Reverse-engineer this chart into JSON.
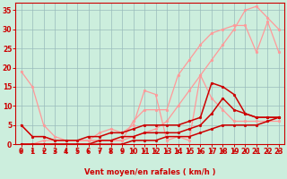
{
  "bg_color": "#cceedd",
  "grid_color": "#99bbbb",
  "xlabel": "Vent moyen/en rafales ( km/h )",
  "ylabel_ticks": [
    0,
    5,
    10,
    15,
    20,
    25,
    30,
    35
  ],
  "xlim": [
    -0.5,
    23.5
  ],
  "ylim": [
    0,
    37
  ],
  "xticks": [
    0,
    1,
    2,
    3,
    4,
    5,
    6,
    7,
    8,
    9,
    10,
    11,
    12,
    13,
    14,
    15,
    16,
    17,
    18,
    19,
    20,
    21,
    22,
    23
  ],
  "series": [
    {
      "x": [
        0,
        1,
        2,
        3,
        4,
        5,
        6,
        7,
        8,
        9,
        10,
        11,
        12,
        13,
        14,
        15,
        16,
        17,
        18,
        19,
        20,
        21,
        22,
        23
      ],
      "y": [
        19,
        15,
        5,
        2,
        1,
        1,
        1,
        1,
        1,
        1,
        6,
        9,
        9,
        9,
        18,
        22,
        26,
        29,
        30,
        31,
        31,
        24,
        32,
        24
      ],
      "color": "#ff9999",
      "lw": 0.9,
      "ms": 2.0
    },
    {
      "x": [
        0,
        1,
        2,
        3,
        4,
        5,
        6,
        7,
        8,
        9,
        10,
        11,
        12,
        13,
        14,
        15,
        16,
        17,
        18,
        19,
        20,
        21,
        22,
        23
      ],
      "y": [
        0,
        0,
        1,
        1,
        1,
        1,
        1,
        1,
        1,
        1,
        2,
        3,
        4,
        6,
        10,
        14,
        18,
        22,
        26,
        30,
        35,
        36,
        33,
        30
      ],
      "color": "#ff9999",
      "lw": 0.9,
      "ms": 2.0
    },
    {
      "x": [
        0,
        1,
        2,
        3,
        4,
        5,
        6,
        7,
        8,
        9,
        10,
        11,
        12,
        13,
        14,
        15,
        16,
        17,
        18,
        19,
        20,
        21,
        22,
        23
      ],
      "y": [
        5,
        2,
        2,
        1,
        1,
        1,
        1,
        3,
        4,
        3,
        5,
        14,
        13,
        1,
        2,
        1,
        18,
        12,
        9,
        6,
        6,
        6,
        6,
        6
      ],
      "color": "#ff9999",
      "lw": 0.9,
      "ms": 2.0
    },
    {
      "x": [
        0,
        1,
        2,
        3,
        4,
        5,
        6,
        7,
        8,
        9,
        10,
        11,
        12,
        13,
        14,
        15,
        16,
        17,
        18,
        19,
        20,
        21,
        22,
        23
      ],
      "y": [
        5,
        2,
        2,
        1,
        1,
        1,
        2,
        2,
        3,
        3,
        4,
        5,
        5,
        5,
        5,
        6,
        7,
        16,
        15,
        13,
        8,
        7,
        7,
        7
      ],
      "color": "#cc0000",
      "lw": 1.1,
      "ms": 2.0
    },
    {
      "x": [
        0,
        1,
        2,
        3,
        4,
        5,
        6,
        7,
        8,
        9,
        10,
        11,
        12,
        13,
        14,
        15,
        16,
        17,
        18,
        19,
        20,
        21,
        22,
        23
      ],
      "y": [
        0,
        0,
        0,
        0,
        0,
        0,
        0,
        1,
        1,
        2,
        2,
        3,
        3,
        3,
        3,
        4,
        5,
        8,
        12,
        9,
        8,
        7,
        7,
        7
      ],
      "color": "#cc0000",
      "lw": 1.1,
      "ms": 2.0
    },
    {
      "x": [
        0,
        1,
        2,
        3,
        4,
        5,
        6,
        7,
        8,
        9,
        10,
        11,
        12,
        13,
        14,
        15,
        16,
        17,
        18,
        19,
        20,
        21,
        22,
        23
      ],
      "y": [
        0,
        0,
        0,
        0,
        0,
        0,
        0,
        0,
        0,
        0,
        1,
        1,
        1,
        2,
        2,
        2,
        3,
        4,
        5,
        5,
        5,
        5,
        6,
        7
      ],
      "color": "#cc0000",
      "lw": 1.1,
      "ms": 2.0
    }
  ],
  "arrow_color": "#cc0000",
  "tick_color": "#cc0000",
  "axis_label_color": "#cc0000"
}
